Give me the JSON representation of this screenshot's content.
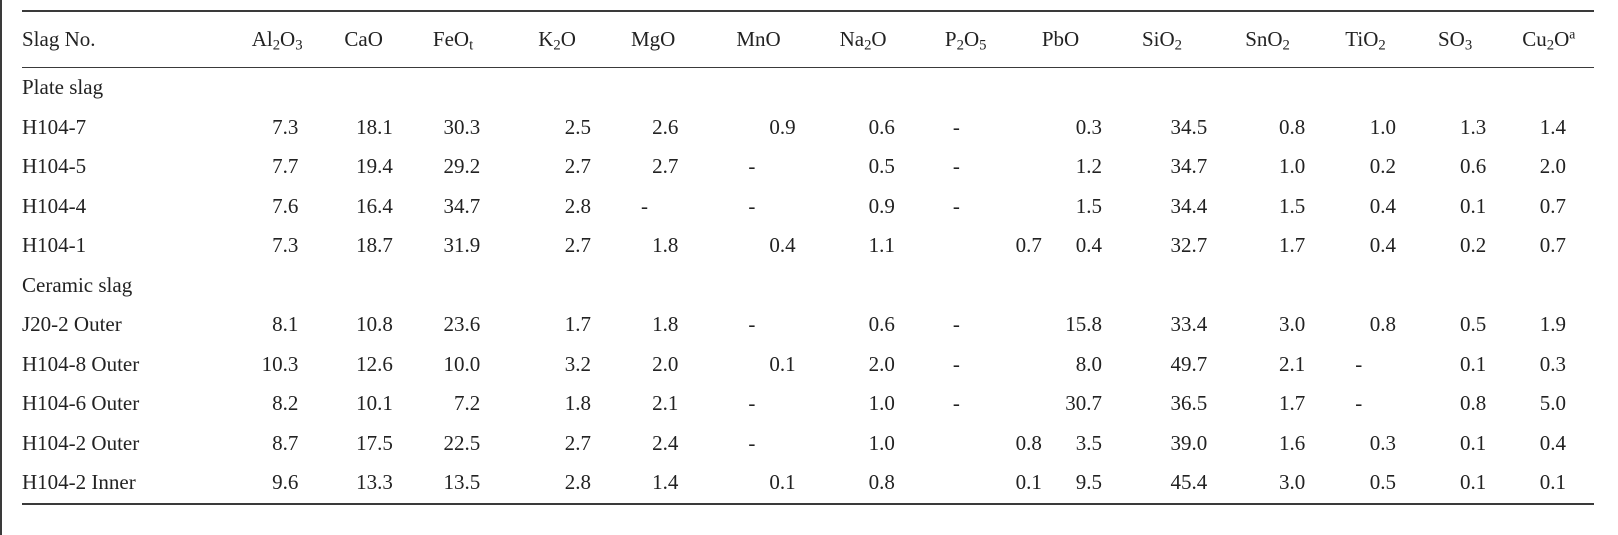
{
  "table": {
    "columns": [
      {
        "key": "slag_no",
        "label": "Slag No.",
        "base": "Slag No.",
        "sub": "",
        "sup": ""
      },
      {
        "key": "al2o3",
        "label": "Al2O3",
        "parts": [
          {
            "t": "Al"
          },
          {
            "t": "2",
            "sub": true
          },
          {
            "t": "O"
          },
          {
            "t": "3",
            "sub": true
          }
        ]
      },
      {
        "key": "cao",
        "label": "CaO",
        "parts": [
          {
            "t": "CaO"
          }
        ]
      },
      {
        "key": "feot",
        "label": "FeOt",
        "parts": [
          {
            "t": "FeO"
          },
          {
            "t": "t",
            "sub": true
          }
        ]
      },
      {
        "key": "k2o",
        "label": "K2O",
        "parts": [
          {
            "t": "K"
          },
          {
            "t": "2",
            "sub": true
          },
          {
            "t": "O"
          }
        ]
      },
      {
        "key": "mgo",
        "label": "MgO",
        "parts": [
          {
            "t": "MgO"
          }
        ]
      },
      {
        "key": "mno",
        "label": "MnO",
        "parts": [
          {
            "t": "MnO"
          }
        ]
      },
      {
        "key": "na2o",
        "label": "Na2O",
        "parts": [
          {
            "t": "Na"
          },
          {
            "t": "2",
            "sub": true
          },
          {
            "t": "O"
          }
        ]
      },
      {
        "key": "p2o5",
        "label": "P2O5",
        "parts": [
          {
            "t": "P"
          },
          {
            "t": "2",
            "sub": true
          },
          {
            "t": "O"
          },
          {
            "t": "5",
            "sub": true
          }
        ]
      },
      {
        "key": "pbo",
        "label": "PbO",
        "parts": [
          {
            "t": "PbO"
          }
        ]
      },
      {
        "key": "sio2",
        "label": "SiO2",
        "parts": [
          {
            "t": "SiO"
          },
          {
            "t": "2",
            "sub": true
          }
        ]
      },
      {
        "key": "sno2",
        "label": "SnO2",
        "parts": [
          {
            "t": "SnO"
          },
          {
            "t": "2",
            "sub": true
          }
        ]
      },
      {
        "key": "tio2",
        "label": "TiO2",
        "parts": [
          {
            "t": "TiO"
          },
          {
            "t": "2",
            "sub": true
          }
        ]
      },
      {
        "key": "so3",
        "label": "SO3",
        "parts": [
          {
            "t": "SO"
          },
          {
            "t": "3",
            "sub": true
          }
        ]
      },
      {
        "key": "cu2o",
        "label": "Cu2Oa",
        "parts": [
          {
            "t": "Cu"
          },
          {
            "t": "2",
            "sub": true
          },
          {
            "t": "O"
          },
          {
            "t": "a",
            "sup": true
          }
        ]
      }
    ],
    "groups": [
      {
        "title": "Plate slag",
        "rows": [
          {
            "name": "H104-7",
            "values": [
              "7.3",
              "18.1",
              "30.3",
              "2.5",
              "2.6",
              "0.9",
              "0.6",
              "-",
              "0.3",
              "34.5",
              "0.8",
              "1.0",
              "1.3",
              "1.4"
            ]
          },
          {
            "name": "H104-5",
            "values": [
              "7.7",
              "19.4",
              "29.2",
              "2.7",
              "2.7",
              "-",
              "0.5",
              "-",
              "1.2",
              "34.7",
              "1.0",
              "0.2",
              "0.6",
              "2.0"
            ]
          },
          {
            "name": "H104-4",
            "values": [
              "7.6",
              "16.4",
              "34.7",
              "2.8",
              "-",
              "-",
              "0.9",
              "-",
              "1.5",
              "34.4",
              "1.5",
              "0.4",
              "0.1",
              "0.7"
            ]
          },
          {
            "name": "H104-1",
            "values": [
              "7.3",
              "18.7",
              "31.9",
              "2.7",
              "1.8",
              "0.4",
              "1.1",
              "0.7",
              "0.4",
              "32.7",
              "1.7",
              "0.4",
              "0.2",
              "0.7"
            ]
          }
        ]
      },
      {
        "title": "Ceramic slag",
        "rows": [
          {
            "name": "J20-2 Outer",
            "values": [
              "8.1",
              "10.8",
              "23.6",
              "1.7",
              "1.8",
              "-",
              "0.6",
              "-",
              "15.8",
              "33.4",
              "3.0",
              "0.8",
              "0.5",
              "1.9"
            ]
          },
          {
            "name": "H104-8 Outer",
            "values": [
              "10.3",
              "12.6",
              "10.0",
              "3.2",
              "2.0",
              "0.1",
              "2.0",
              "-",
              "8.0",
              "49.7",
              "2.1",
              "-",
              "0.1",
              "0.3"
            ]
          },
          {
            "name": "H104-6 Outer",
            "values": [
              "8.2",
              "10.1",
              "7.2",
              "1.8",
              "2.1",
              "-",
              "1.0",
              "-",
              "30.7",
              "36.5",
              "1.7",
              "-",
              "0.8",
              "5.0"
            ]
          },
          {
            "name": "H104-2 Outer",
            "values": [
              "8.7",
              "17.5",
              "22.5",
              "2.7",
              "2.4",
              "-",
              "1.0",
              "0.8",
              "3.5",
              "39.0",
              "1.6",
              "0.3",
              "0.1",
              "0.4"
            ]
          },
          {
            "name": "H104-2 Inner",
            "values": [
              "9.6",
              "13.3",
              "13.5",
              "2.8",
              "1.4",
              "0.1",
              "0.8",
              "0.1",
              "9.5",
              "45.4",
              "3.0",
              "0.5",
              "0.1",
              "0.1"
            ]
          }
        ]
      }
    ]
  }
}
